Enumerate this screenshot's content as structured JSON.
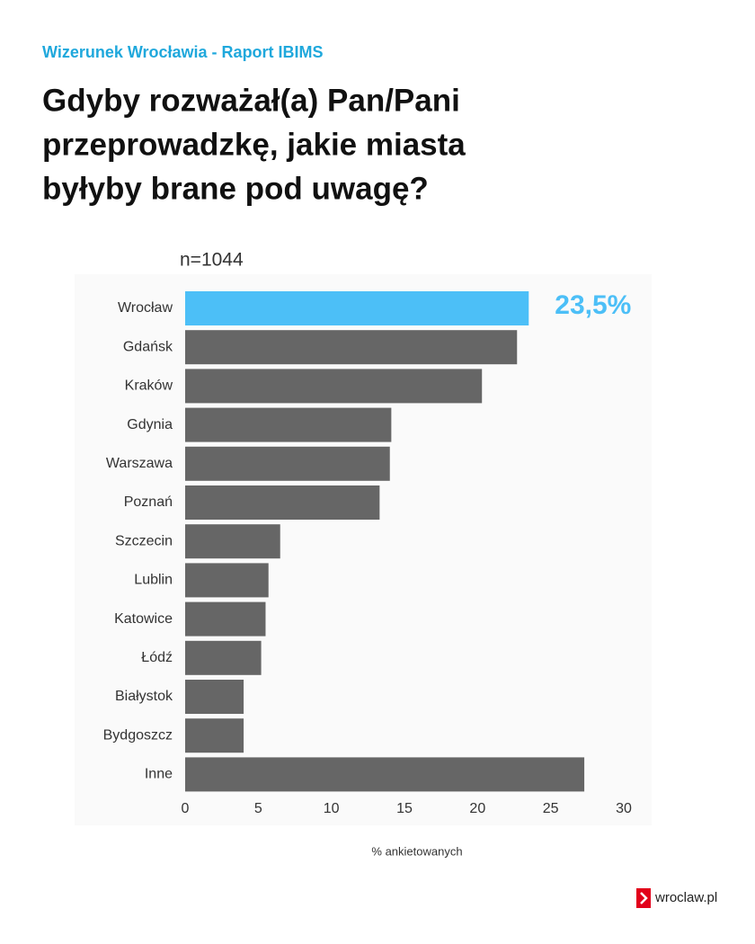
{
  "header": "Wizerunek Wrocławia - Raport IBIMS",
  "footer": {
    "logo_text": "wroclaw.pl"
  },
  "chart_data": {
    "type": "barh",
    "title": [
      "Gdyby rozważał(a) Pan/Pani",
      "przeprowadzkę, jakie miasta",
      "byłyby brane pod uwagę?"
    ],
    "subtitle": "n=1044",
    "xlabel": "% ankietowanych",
    "categories": [
      "Wrocław",
      "Gdańsk",
      "Kraków",
      "Gdynia",
      "Warszawa",
      "Poznań",
      "Szczecin",
      "Lublin",
      "Katowice",
      "Łódź",
      "Białystok",
      "Bydgoszcz",
      "Inne"
    ],
    "values": [
      23.5,
      22.7,
      20.3,
      14.1,
      14.0,
      13.3,
      6.5,
      5.7,
      5.5,
      5.2,
      4.0,
      4.0,
      27.3
    ],
    "value_labels": [
      "23,5%",
      null,
      null,
      null,
      null,
      null,
      null,
      null,
      null,
      null,
      null,
      null,
      null
    ],
    "colors": [
      "#4cbff7",
      "#666666",
      "#666666",
      "#666666",
      "#666666",
      "#666666",
      "#666666",
      "#666666",
      "#666666",
      "#666666",
      "#666666",
      "#666666",
      "#666666"
    ],
    "xlim": [
      0,
      30
    ],
    "xticks": [
      0,
      5,
      10,
      15,
      20,
      25,
      30
    ],
    "grid": false
  }
}
